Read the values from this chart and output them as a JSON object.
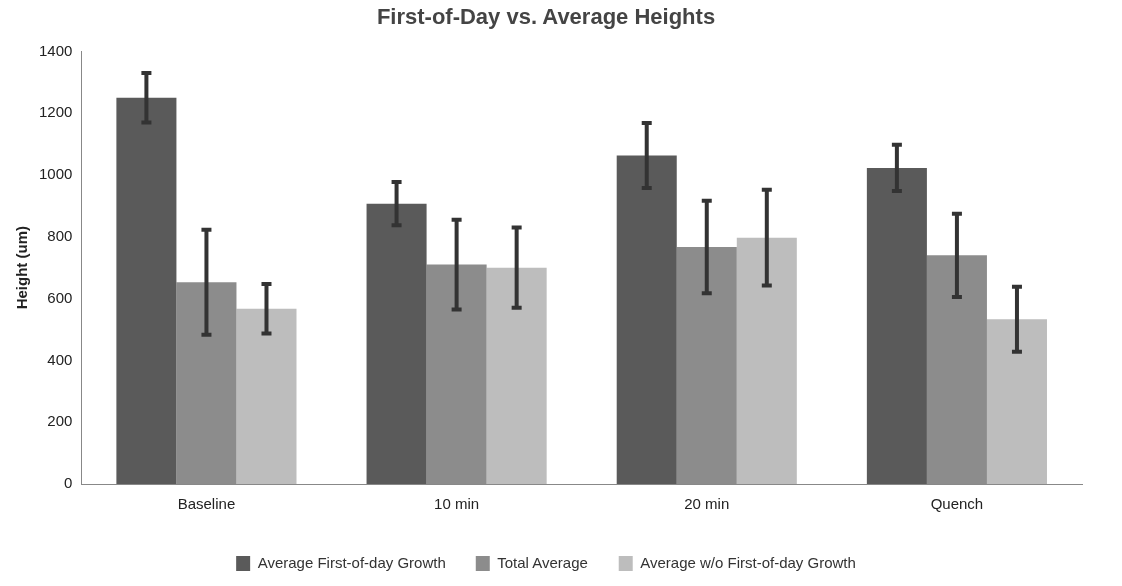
{
  "chart_data": {
    "type": "bar",
    "title": "First-of-Day vs. Average Heights",
    "ylabel": "Height (um)",
    "categories": [
      "Baseline",
      "10 min",
      "20 min",
      "Quench"
    ],
    "series": [
      {
        "name": "Average First-of-day Growth",
        "color": "#5a5a5a",
        "values": [
          1250,
          907,
          1063,
          1023
        ],
        "errors": [
          80,
          70,
          105,
          75
        ]
      },
      {
        "name": "Total Average",
        "color": "#8c8c8c",
        "values": [
          653,
          710,
          767,
          740
        ],
        "errors": [
          170,
          145,
          150,
          135
        ]
      },
      {
        "name": "Average w/o First-of-day Growth",
        "color": "#bdbdbd",
        "values": [
          567,
          700,
          797,
          533
        ],
        "errors": [
          80,
          130,
          155,
          105
        ]
      }
    ],
    "ylim": [
      0,
      1400
    ],
    "yticks": [
      0,
      200,
      400,
      600,
      800,
      1000,
      1200,
      1400
    ],
    "grid": false,
    "legend": "bottom"
  }
}
